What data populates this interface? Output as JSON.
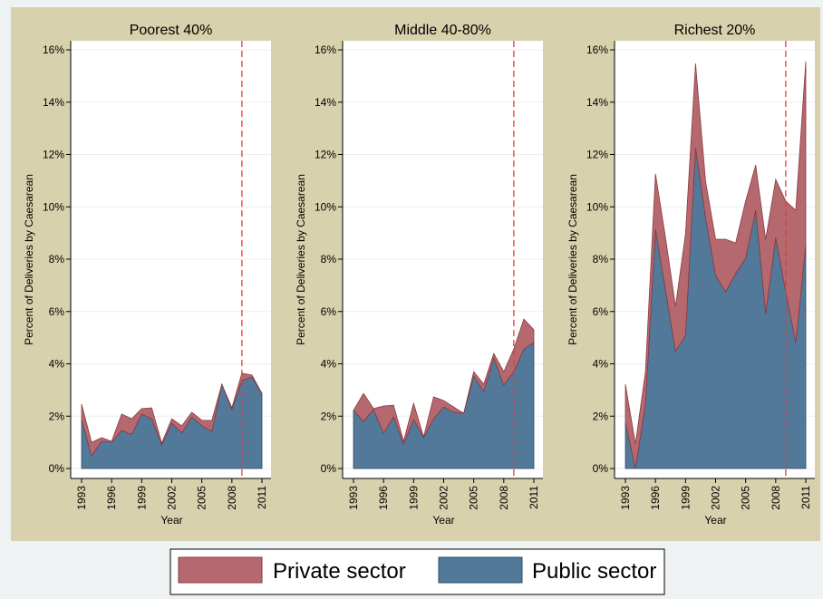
{
  "chart_data": [
    {
      "type": "area",
      "stacked": true,
      "title": "Poorest 40%",
      "xlabel": "Year",
      "ylabel": "Percent of Deliveries by Caesarean",
      "x": [
        1993,
        1994,
        1995,
        1996,
        1997,
        1998,
        1999,
        2000,
        2001,
        2002,
        2003,
        2004,
        2005,
        2006,
        2007,
        2008,
        2009,
        2010,
        2011
      ],
      "series": [
        {
          "name": "Public sector",
          "color": "#52799a",
          "values": [
            1.87,
            0.48,
            1.04,
            1.0,
            1.45,
            1.3,
            2.08,
            1.9,
            0.9,
            1.73,
            1.35,
            1.97,
            1.63,
            1.42,
            3.22,
            2.25,
            3.36,
            3.5,
            2.87
          ]
        },
        {
          "name": "Private sector",
          "color": "#b5696e",
          "values": [
            0.59,
            0.52,
            0.14,
            0.04,
            0.63,
            0.6,
            0.21,
            0.42,
            0.07,
            0.17,
            0.28,
            0.18,
            0.21,
            0.42,
            0,
            0.07,
            0.28,
            0.07,
            0
          ]
        }
      ],
      "xlim": [
        1993,
        2011
      ],
      "xticks": [
        1993,
        1996,
        1999,
        2002,
        2005,
        2008,
        2011
      ],
      "ylim": [
        0,
        16
      ],
      "yticks": [
        {
          "value": 0,
          "label": "0%"
        },
        {
          "value": 2,
          "label": "2%"
        },
        {
          "value": 4,
          "label": "4%"
        },
        {
          "value": 6,
          "label": "6%"
        },
        {
          "value": 8,
          "label": "8%"
        },
        {
          "value": 10,
          "label": "10%"
        },
        {
          "value": 12,
          "label": "12%"
        },
        {
          "value": 14,
          "label": "14%"
        },
        {
          "value": 16,
          "label": "16%"
        }
      ],
      "grid": true,
      "vline": 2009,
      "vline_color": "#e8393c"
    },
    {
      "type": "area",
      "stacked": true,
      "title": "Middle 40-80%",
      "xlabel": "Year",
      "ylabel": "Percent of Deliveries by Caesarean",
      "x": [
        1993,
        1994,
        1995,
        1996,
        1997,
        1998,
        1999,
        2000,
        2001,
        2002,
        2003,
        2004,
        2005,
        2006,
        2007,
        2008,
        2009,
        2010,
        2011
      ],
      "series": [
        {
          "name": "Public sector",
          "color": "#52799a",
          "values": [
            2.22,
            1.8,
            2.25,
            1.35,
            1.97,
            0.94,
            1.87,
            1.18,
            1.9,
            2.35,
            2.15,
            2.11,
            3.53,
            2.94,
            4.22,
            3.19,
            3.7,
            4.57,
            4.81
          ]
        },
        {
          "name": "Private sector",
          "color": "#b5696e",
          "values": [
            0,
            1.07,
            0.04,
            1.04,
            0.45,
            0.1,
            0.62,
            0.03,
            0.84,
            0.25,
            0.2,
            0,
            0.17,
            0.28,
            0.18,
            0.51,
            0.87,
            1.14,
            0.49
          ]
        }
      ],
      "xlim": [
        1993,
        2011
      ],
      "xticks": [
        1993,
        1996,
        1999,
        2002,
        2005,
        2008,
        2011
      ],
      "ylim": [
        0,
        16
      ],
      "yticks": [
        {
          "value": 0,
          "label": "0%"
        },
        {
          "value": 2,
          "label": "2%"
        },
        {
          "value": 4,
          "label": "4%"
        },
        {
          "value": 6,
          "label": "6%"
        },
        {
          "value": 8,
          "label": "8%"
        },
        {
          "value": 10,
          "label": "10%"
        },
        {
          "value": 12,
          "label": "12%"
        },
        {
          "value": 14,
          "label": "14%"
        },
        {
          "value": 16,
          "label": "16%"
        }
      ],
      "grid": true,
      "vline": 2009,
      "vline_color": "#e8393c"
    },
    {
      "type": "area",
      "stacked": true,
      "title": "Richest 20%",
      "xlabel": "Year",
      "ylabel": "Percent of Deliveries by Caesarean",
      "x": [
        1993,
        1994,
        1995,
        1996,
        1997,
        1998,
        1999,
        2000,
        2001,
        2002,
        2003,
        2004,
        2005,
        2006,
        2007,
        2008,
        2009,
        2010,
        2011
      ],
      "series": [
        {
          "name": "Public sector",
          "color": "#52799a",
          "values": [
            1.77,
            0,
            2.46,
            9.14,
            6.82,
            4.47,
            5.09,
            12.26,
            9.59,
            7.38,
            6.75,
            7.45,
            8.03,
            9.87,
            5.92,
            8.83,
            6.75,
            4.81,
            8.55
          ]
        },
        {
          "name": "Private sector",
          "color": "#b5696e",
          "values": [
            1.45,
            0.94,
            1.24,
            2.12,
            2.01,
            1.73,
            3.88,
            3.22,
            1.39,
            1.38,
            2.01,
            1.17,
            2.19,
            1.73,
            2.84,
            2.22,
            3.47,
            5.06,
            7.0
          ]
        }
      ],
      "xlim": [
        1993,
        2011
      ],
      "xticks": [
        1993,
        1996,
        1999,
        2002,
        2005,
        2008,
        2011
      ],
      "ylim": [
        0,
        16
      ],
      "yticks": [
        {
          "value": 0,
          "label": "0%"
        },
        {
          "value": 2,
          "label": "2%"
        },
        {
          "value": 4,
          "label": "4%"
        },
        {
          "value": 6,
          "label": "6%"
        },
        {
          "value": 8,
          "label": "8%"
        },
        {
          "value": 10,
          "label": "10%"
        },
        {
          "value": 12,
          "label": "12%"
        },
        {
          "value": 14,
          "label": "14%"
        },
        {
          "value": 16,
          "label": "16%"
        }
      ],
      "grid": true,
      "vline": 2009,
      "vline_color": "#e8393c"
    }
  ]
}
